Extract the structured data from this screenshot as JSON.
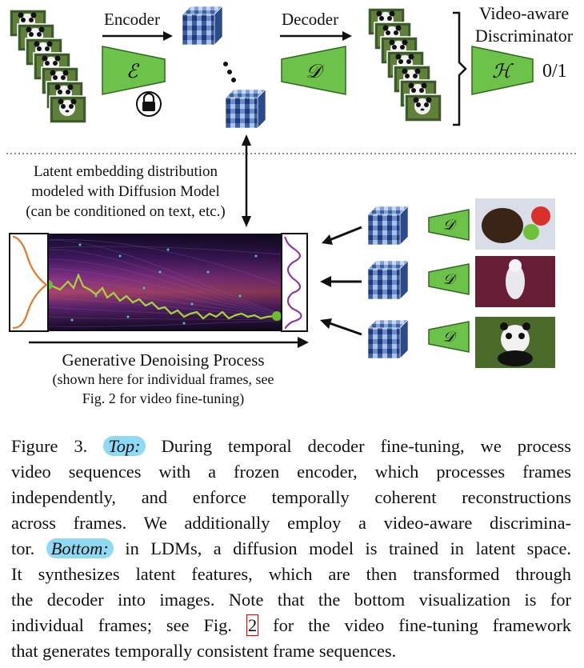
{
  "top": {
    "encoder_label": "Encoder",
    "decoder_label": "Decoder",
    "encoder_symbol": "ℰ",
    "decoder_symbol": "𝒟",
    "disc_symbol": "ℋ",
    "disc_title_line1": "Video-aware",
    "disc_title_line2": "Discriminator",
    "disc_output": "0/1",
    "lock_icon": "lock-icon"
  },
  "middle": {
    "latent_line1": "Latent embedding distribution",
    "latent_line2": "modeled with Diffusion Model",
    "latent_line3": "(can be conditioned on text, etc.)"
  },
  "bottom": {
    "process_title": "Generative Denoising Process",
    "process_sub1": "(shown here for individual frames, see",
    "process_sub2": "Fig. 2 for video fine-tuning)",
    "decoder_symbol": "𝒟"
  },
  "caption": {
    "line1_pre": "Figure 3.",
    "line1_top": "Top:",
    "line1_post": "During temporal decoder fine-tuning, we process",
    "line2": "video sequences with a frozen encoder, which processes frames",
    "line3": "independently, and enforce temporally coherent reconstructions",
    "line4": "across frames. We additionally employ a video-aware discrimina-",
    "line5_pre": "tor.",
    "line5_bottom": "Bottom:",
    "line5_post": "in LDMs, a diffusion model is trained in latent space.",
    "line6": "It synthesizes latent features, which are then transformed through",
    "line7": "the decoder into images. Note that the bottom visualization is for",
    "line8_pre": "individual frames; see Fig.",
    "line8_ref": "2",
    "line8_post": "for the video fine-tuning framework",
    "line9": "that generates temporally consistent frame sequences."
  },
  "colors": {
    "trapezoid_green": "#6dc24a",
    "highlight_blue": "#8fd9f2",
    "latent_blue": "#2a4a8a",
    "diffusion_bg": "#2a1440"
  }
}
